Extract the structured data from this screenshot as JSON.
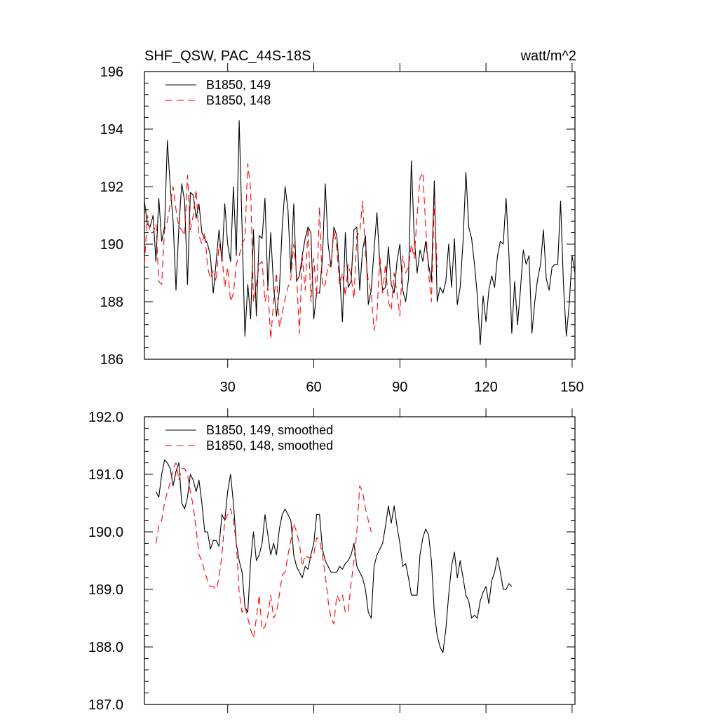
{
  "figure": {
    "title_left": "SHF_QSW, PAC_44S-18S",
    "title_right": "watt/m^2"
  },
  "chart_data": [
    {
      "type": "line",
      "title": "SHF_QSW, PAC_44S-18S",
      "units": "watt/m^2",
      "xlim": [
        1,
        151
      ],
      "ylim": [
        186,
        196
      ],
      "x_ticks": [
        30,
        60,
        90,
        120,
        150
      ],
      "y_ticks": [
        186,
        188,
        190,
        192,
        194,
        196
      ],
      "y_tick_labels": [
        "186",
        "188",
        "190",
        "192",
        "194",
        "196"
      ],
      "show_x_tick_labels": true,
      "grid": false,
      "legend_position": "top-left",
      "series": [
        {
          "name": "B1850, 149",
          "color": "#000000",
          "dash": "solid",
          "x_start": 1,
          "values": [
            191.5,
            190.7,
            190.6,
            191.0,
            189.4,
            191.6,
            190.1,
            190.6,
            193.6,
            192.0,
            190.8,
            188.4,
            190.6,
            192.1,
            191.5,
            188.6,
            191.8,
            191.7,
            190.9,
            191.4,
            190.4,
            190.2,
            190.0,
            189.6,
            188.3,
            189.4,
            190.5,
            189.4,
            191.4,
            190.0,
            189.4,
            192.0,
            189.6,
            194.3,
            190.6,
            186.8,
            188.6,
            187.4,
            190.5,
            187.5,
            190.3,
            190.2,
            191.6,
            188.5,
            190.4,
            188.5,
            187.5,
            188.4,
            190.6,
            192.0,
            191.2,
            189.0,
            191.4,
            188.7,
            188.9,
            189.6,
            190.2,
            190.6,
            190.4,
            187.4,
            188.3,
            188.3,
            189.5,
            192.1,
            190.0,
            189.2,
            190.6,
            190.3,
            189.0,
            187.3,
            190.4,
            188.5,
            188.7,
            190.5,
            190.6,
            188.4,
            189.8,
            190.3,
            187.9,
            188.4,
            189.8,
            191.1,
            189.3,
            188.4,
            188.5,
            189.9,
            188.6,
            188.3,
            189.4,
            190.0,
            188.4,
            188.0,
            188.8,
            192.9,
            190.2,
            189.0,
            189.8,
            189.4,
            190.1,
            189.3,
            188.7,
            192.2,
            188.0,
            188.5,
            188.3,
            188.7,
            190.0,
            188.5,
            190.2,
            187.9,
            188.5,
            190.1,
            192.5,
            190.6,
            190.2,
            189.3,
            188.2,
            186.5,
            188.2,
            187.3,
            188.4,
            188.9,
            188.5,
            189.6,
            190.1,
            190.0,
            191.6,
            189.6,
            186.9,
            188.7,
            187.2,
            188.4,
            189.8,
            189.3,
            189.6,
            186.9,
            188.0,
            188.8,
            189.3,
            190.5,
            188.8,
            188.4,
            189.2,
            189.3,
            189.3,
            191.5,
            188.6,
            186.8,
            187.9,
            189.6,
            189.0
          ]
        },
        {
          "name": "B1850, 148",
          "color": "#ff0000",
          "dash": "dashed",
          "x_start": 1,
          "values": [
            189.3,
            191.0,
            190.4,
            190.4,
            190.7,
            188.7,
            188.6,
            190.5,
            190.8,
            191.4,
            192.0,
            191.2,
            190.6,
            190.5,
            190.3,
            192.4,
            190.5,
            191.0,
            191.9,
            190.3,
            190.0,
            190.4,
            189.2,
            188.8,
            189.1,
            188.7,
            190.0,
            189.6,
            188.5,
            189.2,
            188.0,
            188.3,
            189.3,
            189.6,
            190.0,
            190.2,
            192.8,
            191.9,
            188.0,
            188.6,
            189.3,
            189.4,
            188.0,
            188.5,
            186.7,
            188.0,
            189.0,
            187.1,
            187.6,
            188.1,
            188.5,
            188.8,
            190.0,
            189.0,
            186.9,
            189.6,
            188.4,
            190.6,
            188.0,
            189.5,
            188.2,
            191.3,
            188.5,
            188.6,
            189.3,
            189.2,
            190.5,
            189.9,
            188.6,
            189.0,
            188.2,
            189.3,
            188.9,
            188.1,
            190.3,
            190.4,
            191.5,
            189.7,
            188.7,
            188.3,
            187.0,
            187.5,
            189.6,
            188.3,
            189.3,
            188.0,
            187.7,
            189.0,
            188.3,
            187.5,
            189.6,
            189.0,
            189.2,
            190.0,
            189.5,
            191.0,
            192.3,
            192.5,
            190.6,
            189.0,
            188.0,
            191.5,
            189.2
          ]
        }
      ]
    },
    {
      "type": "line",
      "title": "",
      "units": "",
      "xlim": [
        1,
        151
      ],
      "ylim": [
        187,
        192
      ],
      "x_ticks": [
        30,
        60,
        90,
        120,
        150
      ],
      "y_ticks": [
        187,
        188,
        189,
        190,
        191,
        192
      ],
      "y_tick_labels": [
        "187.0",
        "188.0",
        "189.0",
        "190.0",
        "191.0",
        "192.0"
      ],
      "show_x_tick_labels": false,
      "grid": false,
      "legend_position": "top-left",
      "series": [
        {
          "name": "B1850, 149, smoothed",
          "color": "#000000",
          "dash": "solid",
          "x_start": 5,
          "values": [
            190.7,
            190.6,
            191.0,
            191.25,
            191.2,
            191.1,
            190.8,
            191.05,
            191.2,
            190.5,
            190.4,
            190.6,
            191.0,
            190.9,
            190.7,
            190.9,
            190.5,
            190.0,
            190.0,
            189.7,
            189.85,
            189.85,
            189.75,
            190.3,
            190.2,
            190.7,
            191.0,
            190.5,
            189.8,
            189.5,
            189.3,
            188.7,
            188.6,
            189.5,
            190.0,
            189.5,
            189.6,
            189.8,
            190.3,
            189.95,
            189.6,
            189.8,
            189.6,
            190.05,
            190.3,
            190.4,
            190.3,
            190.2,
            189.6,
            189.4,
            189.3,
            189.2,
            189.4,
            189.35,
            189.6,
            189.8,
            190.3,
            190.3,
            189.7,
            189.5,
            189.4,
            189.3,
            189.3,
            189.3,
            189.4,
            189.35,
            189.45,
            189.5,
            189.6,
            189.8,
            189.4,
            189.3,
            189.2,
            189.0,
            188.6,
            188.5,
            189.4,
            189.6,
            189.7,
            189.8,
            190.1,
            190.45,
            190.15,
            190.45,
            190.1,
            189.8,
            189.4,
            189.45,
            189.2,
            188.9,
            188.9,
            188.9,
            189.6,
            189.9,
            190.05,
            189.95,
            189.5,
            188.6,
            188.2,
            188.0,
            187.9,
            188.3,
            188.9,
            189.4,
            189.65,
            189.2,
            189.5,
            189.2,
            188.9,
            188.8,
            188.5,
            188.55,
            188.5,
            188.8,
            188.95,
            189.05,
            188.75,
            189.15,
            189.3,
            189.55,
            189.3,
            189.0,
            189.0,
            189.1,
            189.05
          ]
        },
        {
          "name": "B1850, 148, smoothed",
          "color": "#ff0000",
          "dash": "dashed",
          "x_start": 5,
          "values": [
            189.8,
            190.1,
            190.2,
            190.5,
            190.7,
            190.85,
            191.1,
            191.2,
            190.9,
            191.1,
            191.1,
            191.0,
            190.7,
            190.45,
            190.05,
            189.6,
            189.5,
            189.3,
            189.15,
            189.05,
            189.05,
            189.0,
            189.2,
            189.6,
            190.2,
            190.3,
            190.4,
            190.2,
            189.8,
            188.95,
            188.6,
            188.7,
            188.5,
            188.3,
            188.15,
            188.5,
            188.9,
            188.3,
            188.35,
            188.55,
            188.9,
            188.5,
            188.6,
            188.9,
            189.25,
            189.3,
            189.6,
            189.85,
            190.15,
            190.0,
            189.8,
            189.4,
            189.6,
            189.55,
            189.55,
            189.6,
            189.9,
            189.85,
            189.6,
            189.25,
            188.8,
            188.5,
            188.4,
            188.9,
            188.8,
            188.9,
            188.6,
            188.6,
            189.1,
            189.5,
            190.0,
            190.8,
            190.7,
            190.4,
            190.2,
            190.0
          ]
        }
      ]
    }
  ]
}
